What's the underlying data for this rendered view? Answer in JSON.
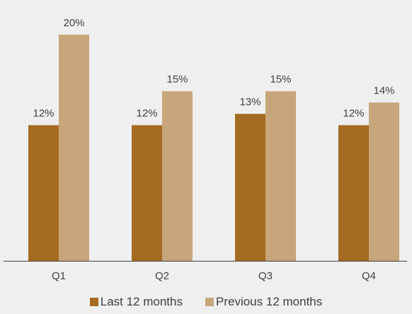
{
  "chart_data": {
    "type": "bar",
    "categories": [
      "Q1",
      "Q2",
      "Q3",
      "Q4"
    ],
    "series": [
      {
        "name": "Last 12 months",
        "values": [
          12,
          12,
          13,
          12
        ],
        "labels": [
          "12%",
          "12%",
          "13%",
          "12%"
        ],
        "color": "#a56b22"
      },
      {
        "name": "Previous 12 months",
        "values": [
          20,
          15,
          15,
          14
        ],
        "labels": [
          "20%",
          "15%",
          "15%",
          "14%"
        ],
        "color": "#c7a67c"
      }
    ],
    "ylim": [
      0,
      20.75
    ],
    "grid": false,
    "legend_position": "bottom",
    "background": "#efefef",
    "axis_color": "#404040",
    "text_color": "#404040"
  }
}
